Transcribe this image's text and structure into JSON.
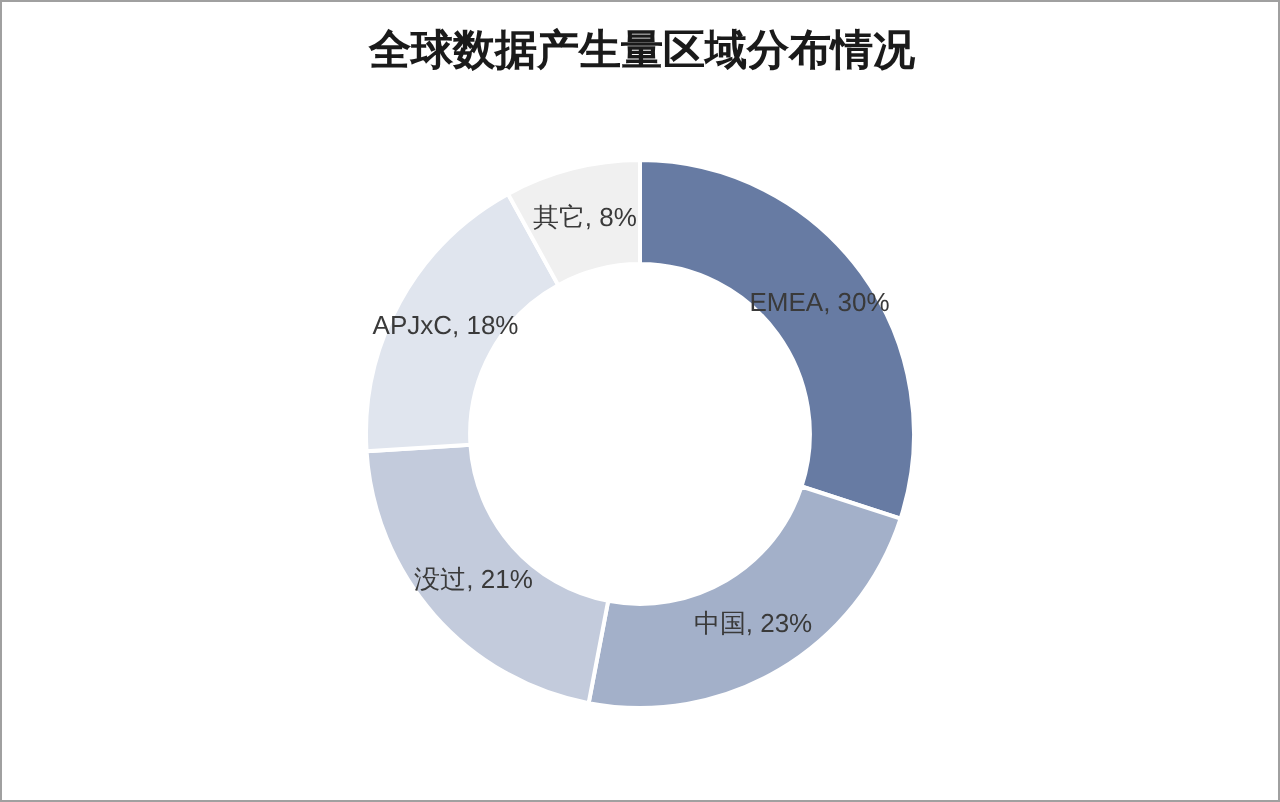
{
  "chart_data": {
    "type": "donut",
    "title": "全球数据产生量区域分布情况",
    "categories": [
      "EMEA",
      "中国",
      "没过",
      "APJxC",
      "其它"
    ],
    "values": [
      30,
      23,
      21,
      18,
      8
    ],
    "colors": [
      "#677ba3",
      "#a3b0c9",
      "#c3cbdc",
      "#e0e5ee",
      "#f0f0f0"
    ],
    "value_labels": [
      "30%",
      "23%",
      "21%",
      "18%",
      "8%"
    ],
    "legend": false
  }
}
